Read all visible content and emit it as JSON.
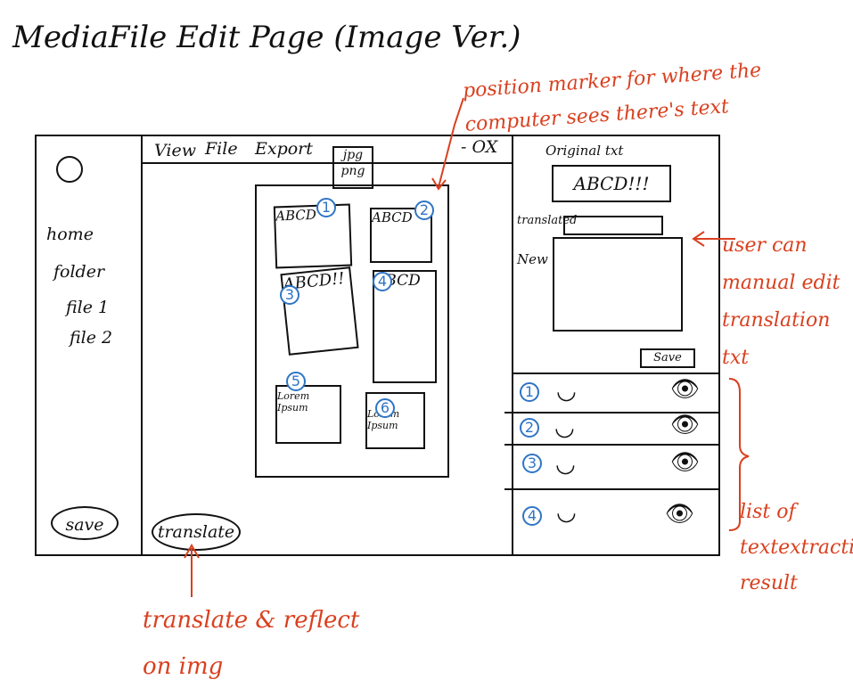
{
  "title": "MediaFile Edit Page (Image Ver.)",
  "sidebar": {
    "items": [
      "home",
      "folder",
      "file 1",
      "file 2"
    ],
    "save_label": "save"
  },
  "menu": {
    "view": "View",
    "file": "File",
    "export": "Export",
    "export_options": [
      "jpg",
      "png"
    ],
    "window_controls": "- OX"
  },
  "canvas": {
    "boxes": [
      {
        "text": "ABCD",
        "marker": "1"
      },
      {
        "text": "ABCD",
        "marker": "2"
      },
      {
        "text": "ABCD!!",
        "marker": "3"
      },
      {
        "text": "ABCD",
        "marker": "4"
      },
      {
        "text": "Lorem Ipsum",
        "marker": "5"
      },
      {
        "text": "Lorem Ipsum",
        "marker": "6"
      }
    ]
  },
  "translate_label": "translate",
  "edit_panel": {
    "original_label": "Original txt",
    "original_value": "ABCD!!!",
    "translated_label": "translated",
    "new_label": "New",
    "save_label": "Save"
  },
  "results": [
    {
      "num": "1"
    },
    {
      "num": "2"
    },
    {
      "num": "3"
    },
    {
      "num": "4"
    }
  ],
  "annotations": {
    "position_marker": "position marker for where the computer sees there's text",
    "manual_edit": "user can manual edit translation txt",
    "list": "list of textextraction result",
    "translate_note": "translate & reflect on img"
  },
  "colors": {
    "ink": "#111111",
    "annotation": "#d9401f",
    "marker": "#2f75c5"
  }
}
